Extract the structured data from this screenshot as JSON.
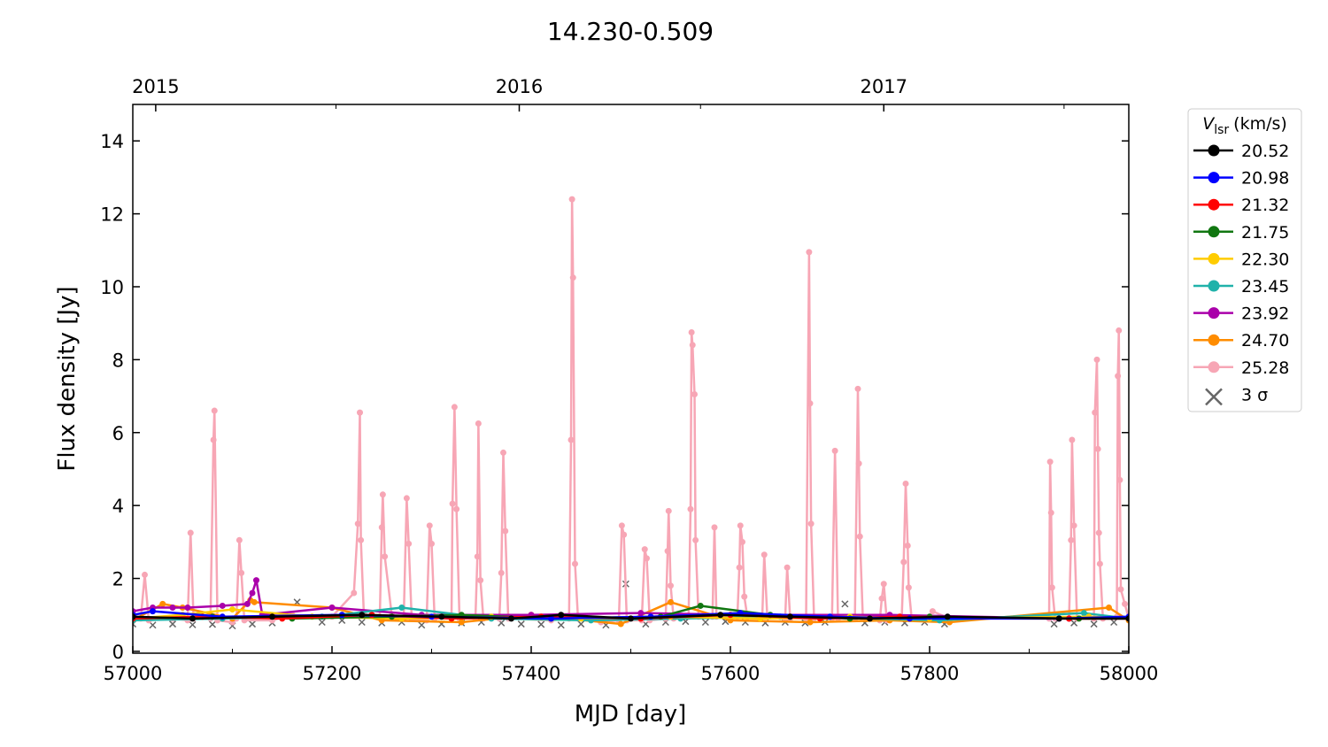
{
  "chart_data": {
    "type": "line",
    "title": "14.230-0.509",
    "xlabel": "MJD [day]",
    "ylabel": "Flux density [Jy]",
    "xlim": [
      57000,
      58000
    ],
    "ylim": [
      -0.05,
      15
    ],
    "xticks": [
      57000,
      57200,
      57400,
      57600,
      57800,
      58000
    ],
    "xminorticks": [
      57100,
      57300,
      57500,
      57700,
      57900
    ],
    "yticks": [
      0,
      2,
      4,
      6,
      8,
      10,
      12,
      14
    ],
    "x2ticks": [
      {
        "value": 57023,
        "label": "2015"
      },
      {
        "value": 57388,
        "label": "2016"
      },
      {
        "value": 57754,
        "label": "2017"
      }
    ],
    "x2minorticks": [
      57204,
      57570,
      57935
    ],
    "legend_title": {
      "symbol": "V",
      "subscript": "lsr",
      "unit": "(km/s)"
    },
    "legend_position": "outside right",
    "series": [
      {
        "name": "20.52",
        "color": "#000000",
        "marker": "o",
        "x": [
          57000,
          57060,
          57140,
          57230,
          57310,
          57380,
          57430,
          57500,
          57590,
          57660,
          57740,
          57818,
          57930,
          58000
        ],
        "values": [
          0.95,
          0.9,
          0.95,
          1.0,
          0.95,
          0.9,
          1.0,
          0.9,
          1.0,
          0.95,
          0.9,
          0.95,
          0.9,
          0.9
        ]
      },
      {
        "name": "20.98",
        "color": "#0000ff",
        "marker": "o",
        "x": [
          57000,
          57020,
          57090,
          57210,
          57300,
          57420,
          57520,
          57610,
          57700,
          57780,
          57930,
          58000
        ],
        "values": [
          1.0,
          1.1,
          0.95,
          1.0,
          0.95,
          0.9,
          0.95,
          1.05,
          0.95,
          0.9,
          0.9,
          0.95
        ]
      },
      {
        "name": "21.32",
        "color": "#ff0000",
        "marker": "o",
        "x": [
          57000,
          57070,
          57150,
          57240,
          57320,
          57410,
          57510,
          57600,
          57690,
          57770,
          57940,
          58000
        ],
        "values": [
          0.9,
          0.95,
          0.9,
          1.0,
          0.9,
          0.95,
          0.9,
          1.0,
          0.9,
          0.95,
          0.9,
          0.9
        ]
      },
      {
        "name": "21.75",
        "color": "#117711",
        "marker": "o",
        "x": [
          57000,
          57080,
          57160,
          57260,
          57330,
          57420,
          57530,
          57570,
          57640,
          57720,
          57800,
          57950,
          58000
        ],
        "values": [
          0.9,
          0.95,
          0.9,
          0.95,
          1.0,
          0.9,
          0.95,
          1.25,
          1.0,
          0.9,
          0.95,
          0.9,
          0.9
        ]
      },
      {
        "name": "22.30",
        "color": "#ffcc00",
        "marker": "o",
        "x": [
          57000,
          57050,
          57100,
          57180,
          57270,
          57360,
          57450,
          57540,
          57630,
          57720,
          57800,
          57960,
          58000
        ],
        "values": [
          0.9,
          1.0,
          1.15,
          0.95,
          0.9,
          0.95,
          0.9,
          0.95,
          0.9,
          0.95,
          0.9,
          0.95,
          0.9
        ]
      },
      {
        "name": "23.45",
        "color": "#20b2aa",
        "marker": "o",
        "x": [
          57000,
          57090,
          57190,
          57270,
          57360,
          57460,
          57550,
          57650,
          57740,
          57810,
          57955,
          58000
        ],
        "values": [
          0.85,
          0.9,
          0.95,
          1.2,
          0.9,
          0.85,
          0.9,
          0.95,
          0.9,
          0.85,
          1.05,
          0.9
        ]
      },
      {
        "name": "23.92",
        "color": "#aa00aa",
        "marker": "o",
        "x": [
          57000,
          57020,
          57040,
          57055,
          57090,
          57115,
          57120,
          57124,
          57130,
          57200,
          57290,
          57400,
          57510,
          57620,
          57760,
          57940,
          58000
        ],
        "values": [
          1.1,
          1.2,
          1.2,
          1.2,
          1.25,
          1.3,
          1.6,
          1.95,
          1.0,
          1.2,
          1.0,
          1.0,
          1.05,
          1.0,
          1.0,
          0.9,
          0.9
        ]
      },
      {
        "name": "24.70",
        "color": "#ff8c00",
        "marker": "o",
        "x": [
          57000,
          57030,
          57050,
          57100,
          57118,
          57122,
          57200,
          57250,
          57330,
          57400,
          57490,
          57540,
          57600,
          57680,
          57760,
          57820,
          57980,
          58000
        ],
        "values": [
          0.85,
          1.3,
          1.2,
          0.9,
          1.4,
          1.35,
          1.2,
          0.85,
          0.8,
          1.0,
          0.75,
          1.35,
          0.85,
          0.8,
          0.85,
          0.8,
          1.2,
          0.85
        ]
      },
      {
        "name": "25.28",
        "color": "#f7a6b5",
        "marker": "o",
        "x": [
          57000,
          57008,
          57012,
          57016,
          57040,
          57055,
          57058,
          57061,
          57078,
          57081,
          57082,
          57085,
          57100,
          57104,
          57107,
          57109,
          57112,
          57140,
          57160,
          57200,
          57222,
          57226,
          57228,
          57229,
          57232,
          57248,
          57250,
          57251,
          57253,
          57260,
          57272,
          57275,
          57277,
          57280,
          57295,
          57298,
          57300,
          57303,
          57320,
          57321,
          57323,
          57325,
          57328,
          57344,
          57346,
          57347,
          57349,
          57352,
          57368,
          57370,
          57372,
          57374,
          57377,
          57420,
          57438,
          57440,
          57441,
          57442,
          57444,
          57447,
          57470,
          57488,
          57491,
          57493,
          57496,
          57511,
          57514,
          57516,
          57519,
          57535,
          57537,
          57538,
          57540,
          57543,
          57558,
          57560,
          57561,
          57562,
          57564,
          57565,
          57568,
          57582,
          57584,
          57586,
          57607,
          57609,
          57610,
          57612,
          57614,
          57617,
          57632,
          57634,
          57637,
          57655,
          57657,
          57660,
          57676,
          57679,
          57680,
          57681,
          57684,
          57702,
          57705,
          57708,
          57725,
          57728,
          57729,
          57730,
          57733,
          57750,
          57752,
          57754,
          57757,
          57772,
          57774,
          57776,
          57778,
          57779,
          57782,
          57800,
          57803,
          57820,
          57920,
          57921,
          57922,
          57923,
          57926,
          57940,
          57942,
          57943,
          57945,
          57948,
          57965,
          57966,
          57968,
          57969,
          57970,
          57971,
          57974,
          57988,
          57989,
          57990,
          57991,
          57992,
          57996,
          58000
        ],
        "values": [
          0.85,
          0.9,
          2.1,
          0.85,
          0.9,
          0.85,
          3.25,
          0.9,
          0.9,
          5.8,
          6.6,
          0.85,
          0.8,
          0.9,
          3.05,
          2.15,
          0.85,
          0.85,
          1.0,
          0.95,
          1.6,
          3.5,
          6.55,
          3.05,
          1.0,
          0.95,
          3.4,
          4.3,
          2.6,
          1.0,
          0.9,
          4.2,
          2.95,
          0.9,
          0.85,
          3.45,
          2.95,
          0.9,
          0.95,
          4.05,
          6.7,
          3.9,
          0.9,
          0.9,
          2.6,
          6.25,
          1.95,
          0.9,
          0.9,
          2.15,
          5.45,
          3.3,
          0.9,
          0.85,
          0.9,
          5.8,
          12.4,
          10.25,
          2.4,
          0.9,
          0.8,
          0.85,
          3.45,
          3.2,
          0.85,
          0.85,
          2.8,
          2.55,
          0.85,
          0.9,
          2.75,
          3.85,
          1.8,
          0.9,
          0.95,
          3.9,
          8.75,
          8.4,
          7.05,
          3.05,
          0.95,
          0.95,
          3.4,
          0.95,
          0.95,
          2.3,
          3.45,
          3.0,
          1.5,
          0.95,
          0.95,
          2.65,
          0.95,
          0.9,
          2.3,
          0.9,
          0.9,
          10.95,
          6.8,
          3.5,
          0.9,
          0.9,
          5.5,
          0.9,
          0.9,
          7.2,
          5.15,
          3.15,
          0.9,
          0.85,
          1.45,
          1.85,
          0.85,
          0.9,
          2.45,
          4.6,
          2.9,
          1.75,
          0.9,
          0.95,
          1.1,
          0.9,
          0.9,
          5.2,
          3.8,
          1.75,
          0.9,
          0.9,
          3.05,
          5.8,
          3.45,
          0.9,
          0.9,
          6.55,
          8.0,
          5.55,
          3.25,
          2.4,
          0.9,
          0.95,
          7.55,
          8.8,
          4.7,
          1.7,
          1.3,
          0.9
        ]
      },
      {
        "name": "3 σ",
        "color": "#666666",
        "marker": "x",
        "x": [
          57000,
          57020,
          57040,
          57060,
          57080,
          57100,
          57120,
          57140,
          57165,
          57190,
          57210,
          57230,
          57250,
          57270,
          57290,
          57310,
          57330,
          57350,
          57370,
          57390,
          57410,
          57430,
          57450,
          57475,
          57495,
          57515,
          57535,
          57555,
          57575,
          57595,
          57615,
          57635,
          57655,
          57675,
          57695,
          57715,
          57735,
          57755,
          57775,
          57795,
          57815,
          57925,
          57945,
          57965,
          57985
        ],
        "values": [
          0.75,
          0.72,
          0.75,
          0.73,
          0.74,
          0.7,
          0.75,
          0.78,
          1.35,
          0.8,
          0.85,
          0.8,
          0.78,
          0.8,
          0.72,
          0.75,
          0.78,
          0.8,
          0.78,
          0.75,
          0.74,
          0.72,
          0.75,
          0.72,
          1.85,
          0.75,
          0.8,
          0.82,
          0.8,
          0.82,
          0.8,
          0.78,
          0.8,
          0.78,
          0.8,
          1.3,
          0.78,
          0.8,
          0.78,
          0.8,
          0.75,
          0.75,
          0.78,
          0.75,
          0.8
        ]
      }
    ]
  }
}
